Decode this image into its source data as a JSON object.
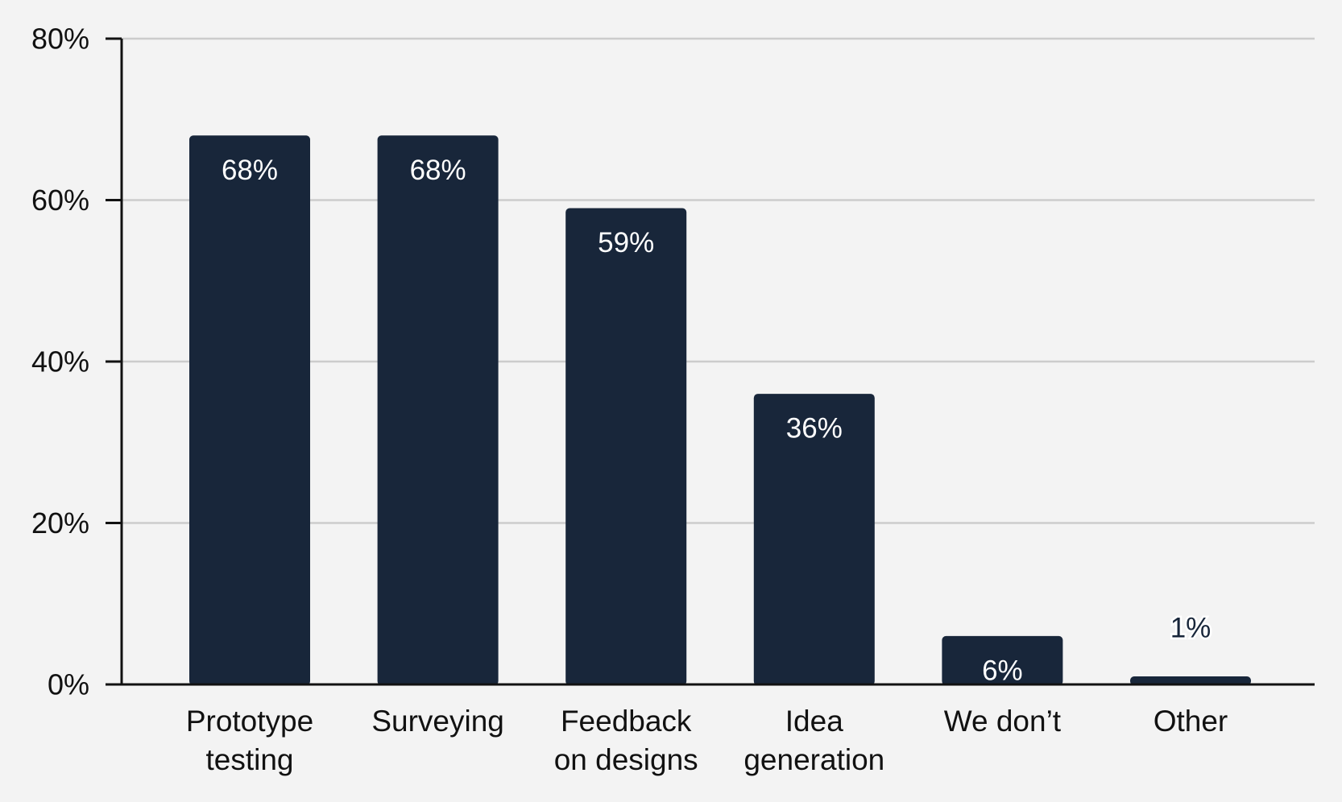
{
  "chart_data": {
    "type": "bar",
    "categories": [
      [
        "Prototype",
        "testing"
      ],
      [
        "Surveying"
      ],
      [
        "Feedback",
        "on designs"
      ],
      [
        "Idea",
        "generation"
      ],
      [
        "We don’t"
      ],
      [
        "Other"
      ]
    ],
    "values": [
      68,
      68,
      59,
      36,
      6,
      1
    ],
    "value_labels": [
      "68%",
      "68%",
      "59%",
      "36%",
      "6%",
      "1%"
    ],
    "ylim": [
      0,
      80
    ],
    "yticks": [
      0,
      20,
      40,
      60,
      80
    ],
    "ytick_labels": [
      "0%",
      "20%",
      "40%",
      "60%",
      "80%"
    ],
    "grid": true,
    "title": "",
    "xlabel": "",
    "ylabel": "",
    "colors": {
      "bar": "#18263a",
      "grid": "#cccccc",
      "axis": "#111111",
      "label_inside": "#ffffff",
      "label_outside": "#18263a",
      "background": "#f3f3f3"
    }
  }
}
